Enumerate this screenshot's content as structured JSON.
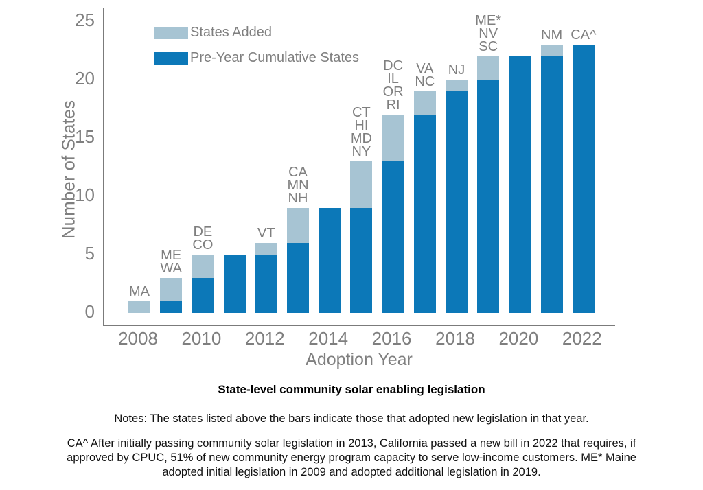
{
  "figure": {
    "title": "State-level community solar enabling legislation",
    "notes": "Notes: The states listed above the bars indicate those that adopted new legislation in that year.",
    "footnote_lines": [
      "CA^ After initially passing community solar legislation in 2013, California passed a new bill in 2022 that requires, if",
      "approved by CPUC, 51% of new community energy program capacity to serve low-income customers. ME* Maine",
      "adopted initial legislation in 2009 and adopted additional legislation in 2019."
    ]
  },
  "colors": {
    "added": "#a7c4d3",
    "cumulative": "#0c78b8",
    "axis_text": "#7f7f7f",
    "spine": "#7b7b7b",
    "title_text": "#000000"
  },
  "chart_data": {
    "type": "bar",
    "stacked": true,
    "title": "State-level community solar enabling legislation",
    "xlabel": "Adoption Year",
    "ylabel": "Number of States",
    "ylim": [
      0,
      25
    ],
    "grid": false,
    "legend_position": "upper-left",
    "x": [
      2008,
      2009,
      2010,
      2011,
      2012,
      2013,
      2014,
      2015,
      2016,
      2017,
      2018,
      2019,
      2020,
      2021,
      2022
    ],
    "xticks": [
      2008,
      2010,
      2012,
      2014,
      2016,
      2018,
      2020,
      2022
    ],
    "yticks": [
      0,
      5,
      10,
      15,
      20,
      25
    ],
    "series": [
      {
        "name": "Pre-Year Cumulative States",
        "color": "#0c78b8",
        "values": [
          0,
          1,
          3,
          5,
          5,
          6,
          9,
          9,
          13,
          17,
          19,
          20,
          22,
          22,
          23
        ]
      },
      {
        "name": "States Added",
        "color": "#a7c4d3",
        "values": [
          1,
          2,
          2,
          0,
          1,
          3,
          0,
          4,
          4,
          2,
          1,
          2,
          0,
          1,
          0
        ]
      }
    ],
    "totals": [
      1,
      3,
      5,
      5,
      6,
      9,
      9,
      13,
      17,
      19,
      20,
      22,
      22,
      23,
      23
    ],
    "bar_labels": [
      [
        "MA"
      ],
      [
        "ME",
        "WA"
      ],
      [
        "DE",
        "CO"
      ],
      [],
      [
        "VT"
      ],
      [
        "CA",
        "MN",
        "NH"
      ],
      [],
      [
        "CT",
        "HI",
        "MD",
        "NY"
      ],
      [
        "DC",
        "IL",
        "OR",
        "RI"
      ],
      [
        "VA",
        "NC"
      ],
      [
        "NJ"
      ],
      [
        "ME*",
        "NV",
        "SC"
      ],
      [],
      [
        "NM"
      ],
      [
        "CA^"
      ]
    ],
    "legend": [
      {
        "label": "States Added"
      },
      {
        "label": "Pre-Year Cumulative States"
      }
    ]
  }
}
